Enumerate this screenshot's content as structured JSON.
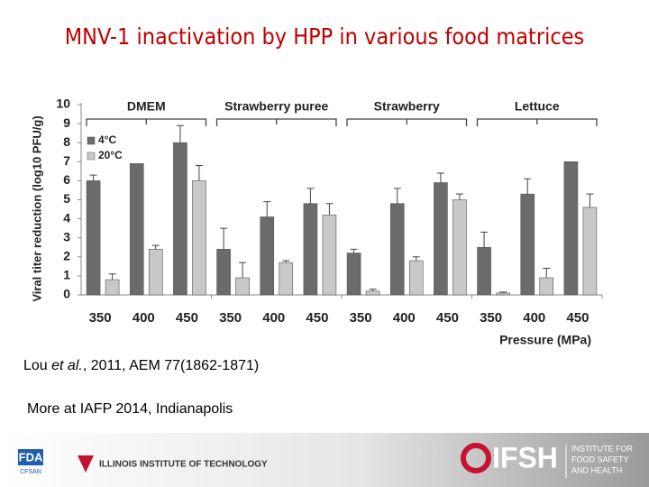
{
  "title": "MNV-1 inactivation by HPP in various food matrices",
  "chart_data": {
    "type": "bar",
    "y_label": "Viral titer reduction (log10 PFU/g)",
    "x_label": "Pressure (MPa)",
    "groups": [
      "DMEM",
      "Strawberry puree",
      "Strawberry",
      "Lettuce"
    ],
    "categories": [
      "350",
      "400",
      "450",
      "350",
      "400",
      "450",
      "350",
      "400",
      "450",
      "350",
      "400",
      "450"
    ],
    "series": [
      {
        "name": "4°C",
        "color": "#6b6b6b",
        "values": [
          6.0,
          6.9,
          8.0,
          2.4,
          4.1,
          4.8,
          2.2,
          4.8,
          5.9,
          2.5,
          5.3,
          7.0
        ],
        "errors": [
          0.3,
          null,
          0.9,
          1.1,
          0.8,
          0.8,
          0.2,
          0.8,
          0.5,
          0.8,
          0.8,
          null
        ]
      },
      {
        "name": "20°C",
        "color": "#c8c8c8",
        "values": [
          0.8,
          2.4,
          6.0,
          0.9,
          1.7,
          4.2,
          0.2,
          1.8,
          5.0,
          0.1,
          0.9,
          4.6
        ],
        "errors": [
          0.3,
          0.2,
          0.8,
          0.8,
          0.1,
          0.6,
          0.1,
          0.2,
          0.3,
          0.05,
          0.5,
          0.7
        ]
      }
    ],
    "ylim": [
      0,
      10
    ],
    "yticks": [
      0,
      1,
      2,
      3,
      4,
      5,
      6,
      7,
      8,
      9,
      10
    ],
    "grid": false
  },
  "citation": [
    "Lou ",
    "et al.",
    ", 2011, AEM 77(1862-1871)"
  ],
  "note": "More at IAFP 2014, Indianapolis",
  "footer": {
    "fda": "FDA",
    "cfsan": "CFSAN",
    "iit": "ILLINOIS INSTITUTE OF TECHNOLOGY",
    "ifsh": "IFSH",
    "ifsh_name": [
      "INSTITUTE FOR",
      "FOOD SAFETY",
      "AND HEALTH"
    ]
  }
}
